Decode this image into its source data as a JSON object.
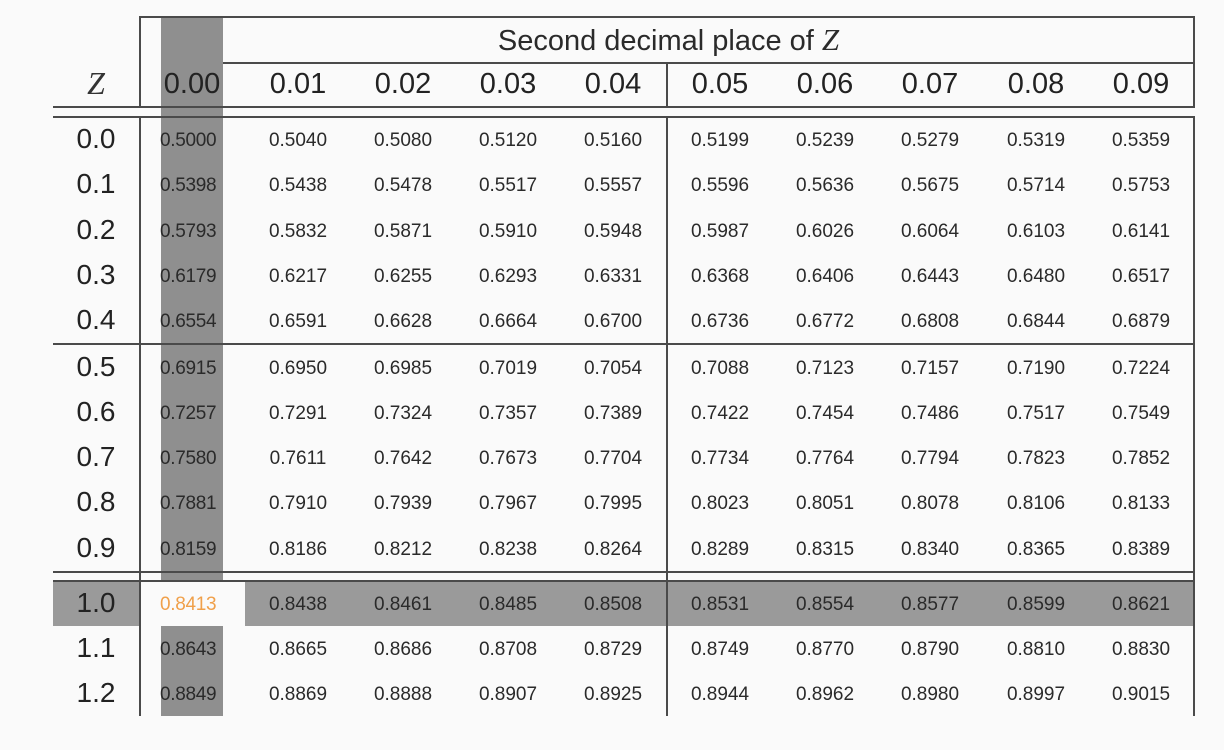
{
  "table": {
    "title_text": "Second decimal place of ",
    "title_var": "Z",
    "row_header_label": "Z",
    "column_headers": [
      "0.00",
      "0.01",
      "0.02",
      "0.03",
      "0.04",
      "0.05",
      "0.06",
      "0.07",
      "0.08",
      "0.09"
    ],
    "rows": [
      {
        "z": "0.0",
        "values": [
          "0.5000",
          "0.5040",
          "0.5080",
          "0.5120",
          "0.5160",
          "0.5199",
          "0.5239",
          "0.5279",
          "0.5319",
          "0.5359"
        ]
      },
      {
        "z": "0.1",
        "values": [
          "0.5398",
          "0.5438",
          "0.5478",
          "0.5517",
          "0.5557",
          "0.5596",
          "0.5636",
          "0.5675",
          "0.5714",
          "0.5753"
        ]
      },
      {
        "z": "0.2",
        "values": [
          "0.5793",
          "0.5832",
          "0.5871",
          "0.5910",
          "0.5948",
          "0.5987",
          "0.6026",
          "0.6064",
          "0.6103",
          "0.6141"
        ]
      },
      {
        "z": "0.3",
        "values": [
          "0.6179",
          "0.6217",
          "0.6255",
          "0.6293",
          "0.6331",
          "0.6368",
          "0.6406",
          "0.6443",
          "0.6480",
          "0.6517"
        ]
      },
      {
        "z": "0.4",
        "values": [
          "0.6554",
          "0.6591",
          "0.6628",
          "0.6664",
          "0.6700",
          "0.6736",
          "0.6772",
          "0.6808",
          "0.6844",
          "0.6879"
        ]
      },
      {
        "z": "0.5",
        "values": [
          "0.6915",
          "0.6950",
          "0.6985",
          "0.7019",
          "0.7054",
          "0.7088",
          "0.7123",
          "0.7157",
          "0.7190",
          "0.7224"
        ]
      },
      {
        "z": "0.6",
        "values": [
          "0.7257",
          "0.7291",
          "0.7324",
          "0.7357",
          "0.7389",
          "0.7422",
          "0.7454",
          "0.7486",
          "0.7517",
          "0.7549"
        ]
      },
      {
        "z": "0.7",
        "values": [
          "0.7580",
          "0.7611",
          "0.7642",
          "0.7673",
          "0.7704",
          "0.7734",
          "0.7764",
          "0.7794",
          "0.7823",
          "0.7852"
        ]
      },
      {
        "z": "0.8",
        "values": [
          "0.7881",
          "0.7910",
          "0.7939",
          "0.7967",
          "0.7995",
          "0.8023",
          "0.8051",
          "0.8078",
          "0.8106",
          "0.8133"
        ]
      },
      {
        "z": "0.9",
        "values": [
          "0.8159",
          "0.8186",
          "0.8212",
          "0.8238",
          "0.8264",
          "0.8289",
          "0.8315",
          "0.8340",
          "0.8365",
          "0.8389"
        ]
      },
      {
        "z": "1.0",
        "values": [
          "0.8413",
          "0.8438",
          "0.8461",
          "0.8485",
          "0.8508",
          "0.8531",
          "0.8554",
          "0.8577",
          "0.8599",
          "0.8621"
        ]
      },
      {
        "z": "1.1",
        "values": [
          "0.8643",
          "0.8665",
          "0.8686",
          "0.8708",
          "0.8729",
          "0.8749",
          "0.8770",
          "0.8790",
          "0.8810",
          "0.8830"
        ]
      },
      {
        "z": "1.2",
        "values": [
          "0.8849",
          "0.8869",
          "0.8888",
          "0.8907",
          "0.8925",
          "0.8944",
          "0.8962",
          "0.8980",
          "0.8997",
          "0.9015"
        ]
      }
    ],
    "highlighted_column": "0.00",
    "highlighted_row": "1.0",
    "highlighted_cell_value": "0.8413"
  },
  "colors": {
    "background": "#fafafa",
    "highlight_column": "#8f8f8f",
    "highlight_row": "#9a9a9a",
    "highlighted_cell_text": "#f0a04a",
    "text": "#2a2a2a",
    "rules": "#4a4a4a"
  }
}
